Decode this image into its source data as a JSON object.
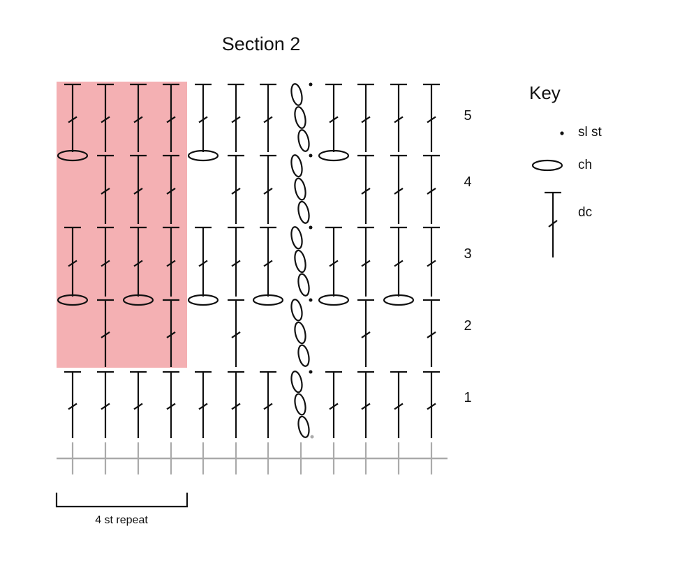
{
  "title": "Section 2",
  "row_numbers": [
    "1",
    "2",
    "3",
    "4",
    "5"
  ],
  "key": {
    "title": "Key",
    "items": [
      {
        "symbol": "sl st",
        "label": "sl st"
      },
      {
        "symbol": "ch",
        "label": "ch"
      },
      {
        "symbol": "dc",
        "label": "dc"
      }
    ]
  },
  "repeat_label": "4 st repeat",
  "colors": {
    "highlight": "#f4b0b3",
    "ink": "#111111",
    "foundation": "#aaaaaa"
  },
  "columns": 12,
  "rows": [
    {
      "number": "1",
      "stitches": [
        "dc",
        "dc",
        "dc",
        "dc",
        "dc",
        "dc",
        "dc",
        "ch-chain",
        "dc",
        "dc",
        "dc",
        "dc"
      ]
    },
    {
      "number": "2",
      "stitches": [
        "ch",
        "dc",
        "ch",
        "dc",
        "ch",
        "dc",
        "ch",
        "ch-chain",
        "ch",
        "dc",
        "ch",
        "dc"
      ]
    },
    {
      "number": "3",
      "stitches": [
        "dc",
        "dc",
        "dc",
        "dc",
        "dc",
        "dc",
        "dc",
        "ch-chain",
        "dc",
        "dc",
        "dc",
        "dc"
      ]
    },
    {
      "number": "4",
      "stitches": [
        "ch",
        "dc",
        "dc",
        "dc",
        "ch",
        "dc",
        "dc",
        "ch-chain",
        "ch",
        "dc",
        "dc",
        "dc"
      ]
    },
    {
      "number": "5",
      "stitches": [
        "dc",
        "dc",
        "dc",
        "dc",
        "dc",
        "dc",
        "dc",
        "ch-chain",
        "dc",
        "dc",
        "dc",
        "dc"
      ]
    }
  ]
}
